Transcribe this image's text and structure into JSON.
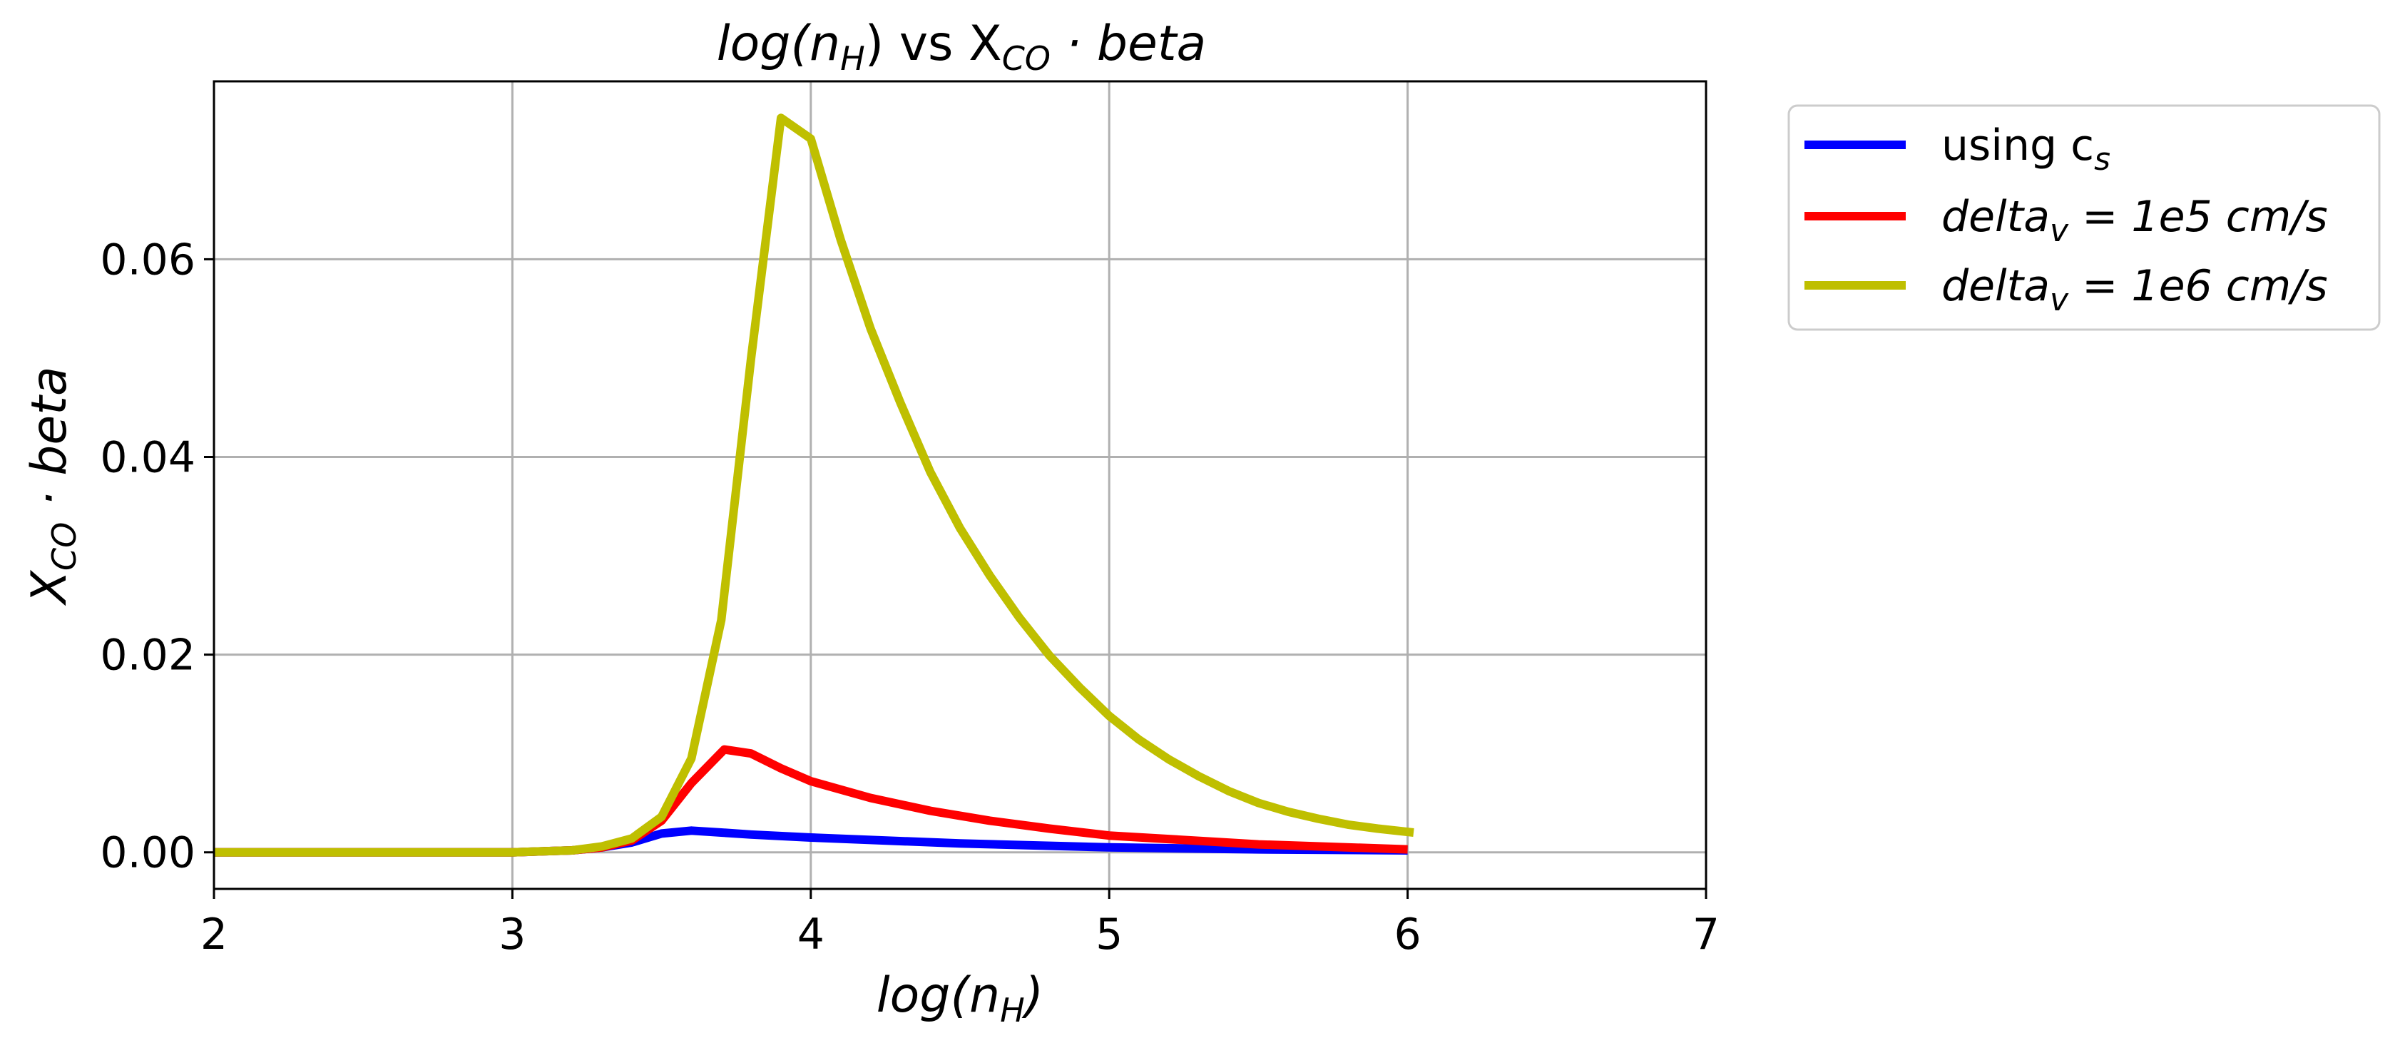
{
  "chart_data": {
    "type": "line",
    "title": {
      "left": "log(n",
      "left_sub": "H",
      "middle": ") vs X",
      "middle_sub": "CO",
      "right": " · beta"
    },
    "xlabel": {
      "main": "log(n",
      "sub": "H",
      "end": ")"
    },
    "ylabel": {
      "main": "X",
      "sub": "CO",
      "end": " · beta"
    },
    "xlim": [
      2,
      7
    ],
    "ylim": [
      -0.0037,
      0.078
    ],
    "xticks": [
      2,
      3,
      4,
      5,
      6,
      7
    ],
    "xtick_labels": [
      "2",
      "3",
      "4",
      "5",
      "6",
      "7"
    ],
    "yticks": [
      0.0,
      0.02,
      0.04,
      0.06
    ],
    "ytick_labels": [
      "0.00",
      "0.02",
      "0.04",
      "0.06"
    ],
    "grid": true,
    "legend_position": "outside-right-top",
    "series": [
      {
        "name": {
          "main": "using c",
          "sub": "s",
          "end": ""
        },
        "color": "#0000ff",
        "x": [
          2.0,
          2.5,
          3.0,
          3.2,
          3.3,
          3.4,
          3.5,
          3.6,
          3.7,
          3.8,
          4.0,
          4.5,
          5.0,
          5.5,
          6.0
        ],
        "y": [
          0.0,
          0.0,
          0.0,
          0.0002,
          0.0005,
          0.001,
          0.0019,
          0.0022,
          0.002,
          0.0018,
          0.0015,
          0.0009,
          0.0005,
          0.0003,
          0.0002
        ]
      },
      {
        "name": {
          "main": "delta",
          "sub": "v",
          "end": " = 1e5 cm/s"
        },
        "color": "#ff0000",
        "x": [
          2.0,
          2.5,
          3.0,
          3.2,
          3.3,
          3.4,
          3.5,
          3.6,
          3.71,
          3.8,
          3.9,
          4.0,
          4.2,
          4.4,
          4.6,
          4.8,
          5.0,
          5.5,
          6.0
        ],
        "y": [
          0.0,
          0.0,
          0.0,
          0.0002,
          0.0005,
          0.0012,
          0.0032,
          0.007,
          0.0104,
          0.01,
          0.0085,
          0.0072,
          0.0055,
          0.0042,
          0.0032,
          0.0024,
          0.0017,
          0.0008,
          0.0003
        ]
      },
      {
        "name": {
          "main": "delta",
          "sub": "v",
          "end": " = 1e6 cm/s"
        },
        "color": "#bfbf00",
        "x": [
          2.0,
          2.5,
          3.0,
          3.1,
          3.2,
          3.3,
          3.4,
          3.5,
          3.6,
          3.7,
          3.8,
          3.9,
          4.0,
          4.1,
          4.2,
          4.3,
          4.4,
          4.5,
          4.6,
          4.7,
          4.8,
          4.9,
          5.0,
          5.1,
          5.2,
          5.3,
          5.4,
          5.5,
          5.6,
          5.7,
          5.8,
          5.9,
          6.02
        ],
        "y": [
          0.0,
          0.0,
          0.0,
          0.0001,
          0.0002,
          0.0006,
          0.0014,
          0.0036,
          0.0095,
          0.0235,
          0.05,
          0.0743,
          0.0722,
          0.062,
          0.053,
          0.0455,
          0.0385,
          0.0328,
          0.028,
          0.0237,
          0.0199,
          0.0167,
          0.0138,
          0.0114,
          0.0094,
          0.0077,
          0.0062,
          0.005,
          0.0041,
          0.0034,
          0.0028,
          0.0024,
          0.002
        ]
      }
    ]
  }
}
